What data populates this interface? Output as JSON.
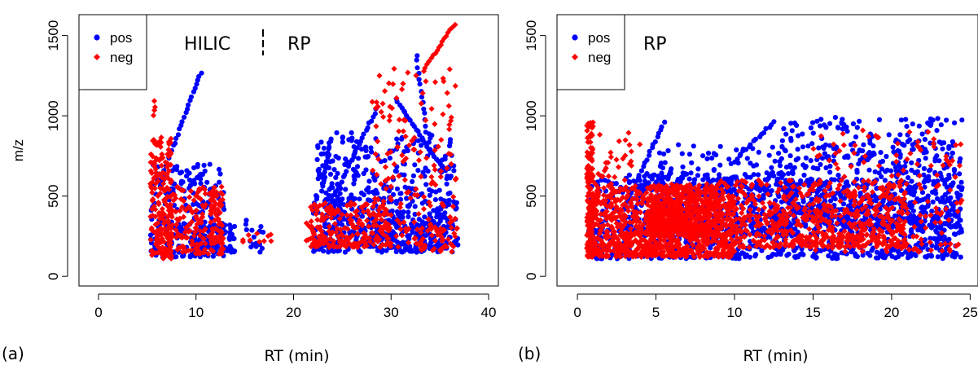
{
  "colors": {
    "pos": "#0000ff",
    "neg": "#ff0000",
    "axis": "#000000"
  },
  "chart_data": [
    {
      "id": "a",
      "type": "scatter",
      "panel_label": "(a)",
      "xlabel": "RT (min)",
      "ylabel": "m/z",
      "xlim": [
        -2,
        41
      ],
      "ylim": [
        -60,
        1630
      ],
      "xticks": [
        0,
        10,
        20,
        30,
        40
      ],
      "yticks": [
        0,
        500,
        1000,
        1500
      ],
      "annotations": [
        "HILIC",
        "RP"
      ],
      "legend": {
        "position": "top-left",
        "entries": [
          {
            "name": "pos",
            "marker": "circle",
            "color": "#0000ff"
          },
          {
            "name": "neg",
            "marker": "diamond",
            "color": "#ff0000"
          }
        ]
      },
      "series": [
        {
          "name": "pos",
          "marker": "circle",
          "color": "#0000ff",
          "clusters": [
            {
              "x": [
                5.3,
                13
              ],
              "y": [
                120,
                700
              ],
              "n": 260
            },
            {
              "x": [
                9,
                14
              ],
              "y": [
                150,
                320
              ],
              "n": 70
            },
            {
              "x": [
                13,
                17
              ],
              "y": [
                150,
                360
              ],
              "n": 20
            },
            {
              "x": [
                22,
                36.5
              ],
              "y": [
                150,
                900
              ],
              "n": 480
            },
            {
              "x": [
                23,
                37
              ],
              "y": [
                180,
                550
              ],
              "n": 200
            }
          ],
          "lines": [
            {
              "x": [
                6.3,
                10.5
              ],
              "y": [
                580,
                1270
              ],
              "n": 28
            },
            {
              "x": [
                23,
                23.8
              ],
              "y": [
                560,
                860
              ],
              "n": 18
            },
            {
              "x": [
                24,
                28.5
              ],
              "y": [
                480,
                1040
              ],
              "n": 26
            },
            {
              "x": [
                30.5,
                35.2
              ],
              "y": [
                1100,
                680
              ],
              "n": 26
            },
            {
              "x": [
                32.6,
                33.6
              ],
              "y": [
                1380,
                900
              ],
              "n": 14
            }
          ]
        },
        {
          "name": "neg",
          "marker": "diamond",
          "color": "#ff0000",
          "clusters": [
            {
              "x": [
                5.3,
                7.5
              ],
              "y": [
                110,
                870
              ],
              "n": 200
            },
            {
              "x": [
                7,
                12.8
              ],
              "y": [
                140,
                560
              ],
              "n": 160
            },
            {
              "x": [
                11.5,
                12.8
              ],
              "y": [
                200,
                560
              ],
              "n": 50
            },
            {
              "x": [
                14.5,
                18
              ],
              "y": [
                210,
                290
              ],
              "n": 10
            },
            {
              "x": [
                21.3,
                30
              ],
              "y": [
                180,
                460
              ],
              "n": 220
            },
            {
              "x": [
                28,
                36.8
              ],
              "y": [
                180,
                1300
              ],
              "n": 180
            },
            {
              "x": [
                33,
                36.5
              ],
              "y": [
                150,
                350
              ],
              "n": 30
            }
          ],
          "lines": [
            {
              "x": [
                5.6,
                5.8
              ],
              "y": [
                1000,
                1090
              ],
              "n": 4
            },
            {
              "x": [
                33.5,
                36.5
              ],
              "y": [
                1300,
                1570
              ],
              "n": 16
            }
          ]
        }
      ]
    },
    {
      "id": "b",
      "type": "scatter",
      "panel_label": "(b)",
      "xlabel": "RT (min)",
      "ylabel": "",
      "xlim": [
        -1.3,
        25.5
      ],
      "ylim": [
        -60,
        1630
      ],
      "xticks": [
        0,
        5,
        10,
        15,
        20,
        25
      ],
      "yticks": [
        0,
        500,
        1000,
        1500
      ],
      "annotations": [
        "RP"
      ],
      "legend": {
        "position": "top-left",
        "entries": [
          {
            "name": "pos",
            "marker": "circle",
            "color": "#0000ff"
          },
          {
            "name": "neg",
            "marker": "diamond",
            "color": "#ff0000"
          }
        ]
      },
      "series": [
        {
          "name": "pos",
          "marker": "circle",
          "color": "#0000ff",
          "clusters": [
            {
              "x": [
                0.7,
                24.5
              ],
              "y": [
                110,
                600
              ],
              "n": 900
            },
            {
              "x": [
                3,
                14
              ],
              "y": [
                250,
                650
              ],
              "n": 300
            },
            {
              "x": [
                13,
                24.5
              ],
              "y": [
                300,
                990
              ],
              "n": 650
            },
            {
              "x": [
                5,
                13
              ],
              "y": [
                500,
                820
              ],
              "n": 120
            }
          ],
          "lines": [
            {
              "x": [
                3,
                5.5
              ],
              "y": [
                420,
                960
              ],
              "n": 24
            },
            {
              "x": [
                9.8,
                12.5
              ],
              "y": [
                700,
                960
              ],
              "n": 18
            }
          ]
        },
        {
          "name": "neg",
          "marker": "diamond",
          "color": "#ff0000",
          "clusters": [
            {
              "x": [
                0.6,
                1.0
              ],
              "y": [
                120,
                960
              ],
              "n": 160
            },
            {
              "x": [
                0.8,
                10
              ],
              "y": [
                120,
                560
              ],
              "n": 900
            },
            {
              "x": [
                4.5,
                9
              ],
              "y": [
                250,
                580
              ],
              "n": 500
            },
            {
              "x": [
                9,
                21
              ],
              "y": [
                180,
                600
              ],
              "n": 600
            },
            {
              "x": [
                1,
                4
              ],
              "y": [
                500,
                900
              ],
              "n": 40
            },
            {
              "x": [
                15,
                24.5
              ],
              "y": [
                150,
                920
              ],
              "n": 180
            }
          ],
          "lines": []
        }
      ]
    }
  ]
}
